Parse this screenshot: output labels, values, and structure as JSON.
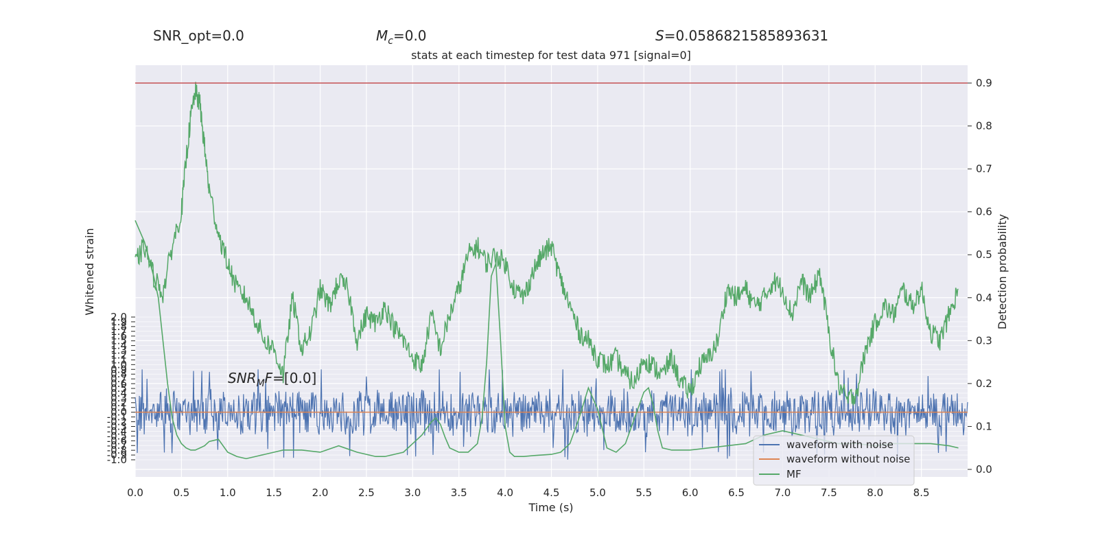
{
  "header": {
    "snr_opt": "SNR_opt=0.0",
    "mc_symbol": "M",
    "mc_sub": "c",
    "mc_value": "=0.0",
    "s_symbol": "S",
    "s_value": "=0.0586821585893631",
    "title": "stats at each timestep for test data 971 [signal=0]"
  },
  "annotation": {
    "snr_prefix": "SNR",
    "snr_sub": "M",
    "snr_mid": "F",
    "snr_value": "=[0.0]"
  },
  "colors": {
    "plot_bg": "#eaeaf2",
    "grid": "#ffffff",
    "noisy": "#4c72b0",
    "clean": "#dd8452",
    "mf": "#55a868",
    "threshold": "#c44e52"
  },
  "chart_data": {
    "type": "line",
    "xlabel": "Time (s)",
    "ylabel_left": "Whitened strain",
    "ylabel_right": "Detection probability",
    "x_ticks": [
      "0.0",
      "0.5",
      "1.0",
      "1.5",
      "2.0",
      "2.5",
      "3.0",
      "3.5",
      "4.0",
      "4.5",
      "5.0",
      "5.5",
      "6.0",
      "6.5",
      "7.0",
      "7.5",
      "8.0",
      "8.5"
    ],
    "xlim": [
      0,
      9
    ],
    "ylim_left": [
      -1.0,
      2.0
    ],
    "y_left_ticks": [
      "-1.0",
      "-0.9",
      "-0.8",
      "-0.7",
      "-0.6",
      "-0.5",
      "-0.4",
      "-0.3",
      "-0.2",
      "-0.1",
      "0.0",
      "0.1",
      "0.2",
      "0.3",
      "0.4",
      "0.5",
      "0.6",
      "0.7",
      "0.8",
      "0.9",
      "1.0",
      "1.1",
      "1.2",
      "1.3",
      "1.4",
      "1.5",
      "1.6",
      "1.7",
      "1.8",
      "1.9",
      "2.0"
    ],
    "ylim_right": [
      -0.02,
      0.92
    ],
    "y_right_ticks": [
      "0.0",
      "0.1",
      "0.2",
      "0.3",
      "0.4",
      "0.5",
      "0.6",
      "0.7",
      "0.8",
      "0.9"
    ],
    "threshold": 0.9,
    "legend": [
      "waveform with noise",
      "waveform without noise",
      "MF"
    ],
    "legend_position": "lower-right",
    "series": [
      {
        "name": "waveform with noise",
        "axis": "left",
        "kind": "noise",
        "description_stats": {
          "mean": 0.0,
          "typical_amplitude": 0.55,
          "max": 0.9,
          "min": -1.0
        }
      },
      {
        "name": "waveform without noise",
        "axis": "left",
        "x": [
          0,
          9
        ],
        "y": [
          0.0,
          0.0
        ]
      },
      {
        "name": "MF",
        "axis": "right",
        "x": [
          0.0,
          0.1,
          0.2,
          0.25,
          0.3,
          0.35,
          0.4,
          0.45,
          0.5,
          0.55,
          0.6,
          0.65,
          0.7,
          0.75,
          0.8,
          0.9,
          1.0,
          1.1,
          1.2,
          1.3,
          1.4,
          1.5,
          1.6,
          1.8,
          2.0,
          2.2,
          2.4,
          2.6,
          2.7,
          2.9,
          3.0,
          3.1,
          3.2,
          3.25,
          3.3,
          3.35,
          3.4,
          3.5,
          3.6,
          3.7,
          3.75,
          3.8,
          3.85,
          3.9,
          3.95,
          4.0,
          4.05,
          4.1,
          4.2,
          4.3,
          4.5,
          4.6,
          4.7,
          4.8,
          4.9,
          5.0,
          5.1,
          5.2,
          5.3,
          5.4,
          5.5,
          5.55,
          5.6,
          5.65,
          5.7,
          5.8,
          6.0,
          6.2,
          6.4,
          6.6,
          6.8,
          7.0,
          7.2,
          7.4,
          7.6,
          7.8,
          8.0,
          8.2,
          8.4,
          8.6,
          8.8,
          8.9
        ],
        "y": [
          0.58,
          0.53,
          0.45,
          0.4,
          0.3,
          0.2,
          0.12,
          0.08,
          0.06,
          0.05,
          0.045,
          0.045,
          0.05,
          0.055,
          0.065,
          0.07,
          0.04,
          0.03,
          0.025,
          0.03,
          0.035,
          0.04,
          0.045,
          0.045,
          0.04,
          0.055,
          0.04,
          0.03,
          0.03,
          0.04,
          0.06,
          0.08,
          0.11,
          0.12,
          0.105,
          0.075,
          0.05,
          0.04,
          0.04,
          0.06,
          0.12,
          0.25,
          0.45,
          0.48,
          0.3,
          0.1,
          0.04,
          0.03,
          0.03,
          0.032,
          0.035,
          0.04,
          0.06,
          0.12,
          0.19,
          0.14,
          0.05,
          0.04,
          0.06,
          0.12,
          0.18,
          0.19,
          0.15,
          0.09,
          0.05,
          0.045,
          0.045,
          0.05,
          0.055,
          0.06,
          0.08,
          0.09,
          0.08,
          0.07,
          0.06,
          0.06,
          0.055,
          0.06,
          0.06,
          0.06,
          0.055,
          0.05
        ]
      },
      {
        "name": "",
        "axis": "right",
        "kind": "probability_trace",
        "x": [
          0.0,
          0.1,
          0.2,
          0.3,
          0.4,
          0.5,
          0.55,
          0.6,
          0.65,
          0.7,
          0.75,
          0.8,
          0.9,
          1.0,
          1.1,
          1.2,
          1.3,
          1.4,
          1.5,
          1.6,
          1.7,
          1.8,
          1.9,
          2.0,
          2.1,
          2.2,
          2.3,
          2.4,
          2.5,
          2.6,
          2.7,
          2.8,
          2.9,
          3.0,
          3.1,
          3.2,
          3.3,
          3.4,
          3.5,
          3.6,
          3.7,
          3.8,
          3.9,
          4.0,
          4.1,
          4.2,
          4.3,
          4.4,
          4.5,
          4.6,
          4.7,
          4.8,
          4.9,
          5.0,
          5.1,
          5.2,
          5.3,
          5.4,
          5.5,
          5.6,
          5.7,
          5.8,
          5.9,
          6.0,
          6.1,
          6.2,
          6.3,
          6.4,
          6.5,
          6.6,
          6.7,
          6.8,
          6.9,
          7.0,
          7.1,
          7.2,
          7.3,
          7.4,
          7.5,
          7.6,
          7.7,
          7.8,
          7.9,
          8.0,
          8.1,
          8.2,
          8.3,
          8.4,
          8.5,
          8.6,
          8.7,
          8.8,
          8.9
        ],
        "y": [
          0.48,
          0.52,
          0.45,
          0.41,
          0.52,
          0.6,
          0.72,
          0.82,
          0.88,
          0.85,
          0.75,
          0.65,
          0.55,
          0.48,
          0.42,
          0.4,
          0.35,
          0.3,
          0.28,
          0.22,
          0.4,
          0.28,
          0.32,
          0.42,
          0.38,
          0.44,
          0.42,
          0.3,
          0.36,
          0.34,
          0.38,
          0.33,
          0.3,
          0.26,
          0.24,
          0.36,
          0.28,
          0.36,
          0.42,
          0.5,
          0.52,
          0.48,
          0.5,
          0.48,
          0.42,
          0.4,
          0.46,
          0.5,
          0.52,
          0.44,
          0.38,
          0.32,
          0.3,
          0.26,
          0.24,
          0.26,
          0.22,
          0.2,
          0.26,
          0.24,
          0.22,
          0.26,
          0.2,
          0.18,
          0.24,
          0.26,
          0.3,
          0.42,
          0.4,
          0.42,
          0.38,
          0.4,
          0.44,
          0.42,
          0.36,
          0.44,
          0.4,
          0.46,
          0.32,
          0.2,
          0.16,
          0.18,
          0.28,
          0.34,
          0.38,
          0.36,
          0.42,
          0.38,
          0.42,
          0.32,
          0.3,
          0.36,
          0.42
        ]
      }
    ]
  }
}
